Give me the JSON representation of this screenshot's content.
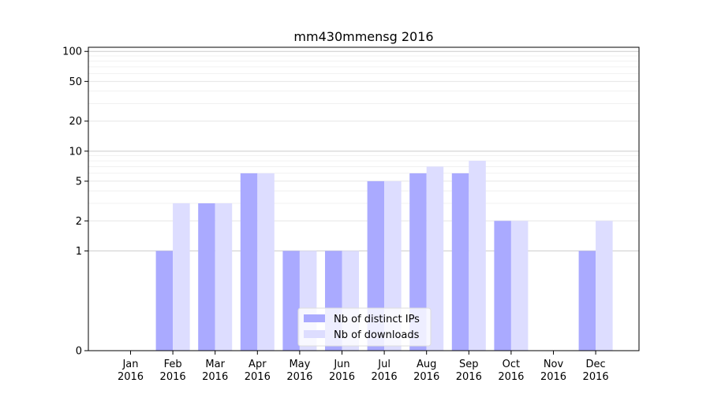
{
  "chart_data": {
    "type": "bar",
    "title": "mm430mmensg 2016",
    "xlabel": "",
    "ylabel": "",
    "yscale": "symlog",
    "ylim": [
      0,
      110
    ],
    "yticks": [
      0,
      1,
      2,
      5,
      10,
      20,
      50,
      100
    ],
    "grid": true,
    "legend_position": "lower-center",
    "categories": [
      [
        "Jan",
        "2016"
      ],
      [
        "Feb",
        "2016"
      ],
      [
        "Mar",
        "2016"
      ],
      [
        "Apr",
        "2016"
      ],
      [
        "May",
        "2016"
      ],
      [
        "Jun",
        "2016"
      ],
      [
        "Jul",
        "2016"
      ],
      [
        "Aug",
        "2016"
      ],
      [
        "Sep",
        "2016"
      ],
      [
        "Oct",
        "2016"
      ],
      [
        "Nov",
        "2016"
      ],
      [
        "Dec",
        "2016"
      ]
    ],
    "series": [
      {
        "name": "Nb of distinct IPs",
        "color": "#aaaaff",
        "values": [
          0,
          1,
          3,
          6,
          1,
          1,
          5,
          6,
          6,
          2,
          0,
          1
        ]
      },
      {
        "name": "Nb of downloads",
        "color": "#ddddff",
        "values": [
          0,
          3,
          3,
          6,
          1,
          1,
          5,
          7,
          8,
          2,
          0,
          2
        ]
      }
    ]
  }
}
